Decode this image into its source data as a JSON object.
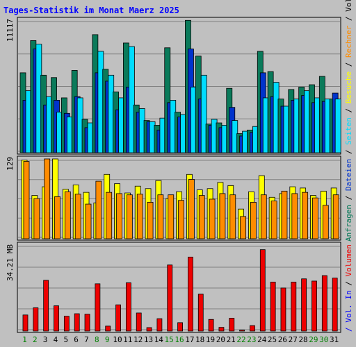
{
  "title": "Tages-Statistik im Monat Maerz 2025",
  "colors": {
    "background": "#c0c0c0",
    "panel_bg": "#c0c0c0",
    "grid": "#808080",
    "anfragen": "#0a7a5a",
    "dateien": "#0033cc",
    "seiten": "#00ddff",
    "besuche": "#ffff00",
    "rechner": "#ff8c00",
    "volumen": "#ee0000",
    "weekday_label": "#000000",
    "weekend_label": "#008000",
    "title": "#0000ff"
  },
  "right_legend": {
    "top": [
      {
        "text": "Anfragen",
        "color": "#0a7a5a"
      },
      {
        "text": " / ",
        "color": "#000000"
      },
      {
        "text": "Dateien",
        "color": "#0033cc"
      },
      {
        "text": " / ",
        "color": "#000000"
      },
      {
        "text": "Seiten",
        "color": "#00ddff"
      },
      {
        "text": " / ",
        "color": "#000000"
      },
      {
        "text": "Besuche",
        "color": "#ffff00"
      },
      {
        "text": " / ",
        "color": "#000000"
      },
      {
        "text": "Rechner",
        "color": "#ff8c00"
      },
      {
        "text": " / Vol. Out",
        "color": "#000000"
      }
    ],
    "bottom": [
      {
        "text": " / Vol. In",
        "color": "#0000ff"
      },
      {
        "text": " / ",
        "color": "#000000"
      },
      {
        "text": "Volumen",
        "color": "#ee0000"
      }
    ]
  },
  "chart_data": [
    {
      "type": "bar",
      "panel": "requests",
      "ymax_label": "11117",
      "ylim": [
        0,
        11117
      ],
      "x": [
        1,
        2,
        3,
        4,
        5,
        6,
        7,
        8,
        9,
        10,
        11,
        12,
        13,
        14,
        15,
        16,
        17,
        18,
        19,
        20,
        21,
        22,
        23,
        24,
        25,
        26,
        27,
        28,
        29,
        30,
        31
      ],
      "series": [
        {
          "name": "Anfragen",
          "values": [
            6700,
            9400,
            6500,
            6300,
            4600,
            6900,
            2800,
            9900,
            7000,
            5100,
            9200,
            4000,
            2700,
            2300,
            8800,
            3400,
            11100,
            8100,
            2400,
            2500,
            5400,
            1600,
            1900,
            8500,
            6800,
            4500,
            5300,
            5500,
            5700,
            6400,
            4500
          ]
        },
        {
          "name": "Dateien",
          "values": [
            4400,
            8700,
            4000,
            4400,
            3300,
            4700,
            2100,
            6700,
            6000,
            3600,
            5500,
            3400,
            2600,
            1900,
            4200,
            3000,
            8700,
            4500,
            2300,
            2100,
            3800,
            1400,
            1700,
            6700,
            4700,
            3900,
            4400,
            4800,
            4200,
            4300,
            5000
          ]
        },
        {
          "name": "Seiten",
          "values": [
            5200,
            9100,
            4700,
            3400,
            3000,
            4600,
            2500,
            8500,
            6500,
            4600,
            8900,
            3700,
            2600,
            2900,
            4400,
            3200,
            5500,
            6500,
            2800,
            2300,
            2700,
            1800,
            2200,
            4600,
            5900,
            3900,
            4500,
            5200,
            4600,
            4500,
            4500
          ]
        }
      ]
    },
    {
      "type": "bar",
      "panel": "visits",
      "ymax_label": "129",
      "ylim": [
        0,
        129
      ],
      "x": [
        1,
        2,
        3,
        4,
        5,
        6,
        7,
        8,
        9,
        10,
        11,
        12,
        13,
        14,
        15,
        16,
        17,
        18,
        19,
        20,
        21,
        22,
        23,
        24,
        25,
        26,
        27,
        28,
        29,
        30,
        31
      ],
      "series": [
        {
          "name": "Besuche",
          "values": [
            127,
            70,
            84,
            129,
            80,
            87,
            75,
            58,
            104,
            89,
            74,
            85,
            81,
            94,
            65,
            76,
            104,
            79,
            81,
            91,
            86,
            48,
            76,
            102,
            67,
            73,
            84,
            82,
            70,
            77,
            82
          ]
        },
        {
          "name": "Rechner",
          "values": [
            125,
            65,
            129,
            68,
            76,
            72,
            56,
            93,
            75,
            73,
            71,
            72,
            59,
            71,
            71,
            62,
            96,
            70,
            64,
            73,
            71,
            36,
            59,
            71,
            61,
            77,
            73,
            75,
            66,
            54,
            71
          ]
        }
      ]
    },
    {
      "type": "bar",
      "panel": "volume",
      "ymax_label": "34.21 MB",
      "ylim": [
        0,
        34.21
      ],
      "x": [
        1,
        2,
        3,
        4,
        5,
        6,
        7,
        8,
        9,
        10,
        11,
        12,
        13,
        14,
        15,
        16,
        17,
        18,
        19,
        20,
        21,
        22,
        23,
        24,
        25,
        26,
        27,
        28,
        29,
        30,
        31
      ],
      "series": [
        {
          "name": "Volumen",
          "values": [
            6.5,
            9.4,
            20.5,
            10.2,
            6.0,
            7.0,
            6.8,
            19.1,
            2.0,
            10.6,
            19.5,
            7.3,
            1.4,
            5.0,
            26.7,
            3.4,
            29.9,
            14.9,
            4.7,
            1.5,
            5.2,
            0.4,
            2.2,
            32.9,
            19.8,
            17.4,
            19.8,
            21.1,
            20.2,
            22.4,
            21.4
          ]
        }
      ]
    }
  ],
  "x_labels": [
    "1",
    "2",
    "3",
    "4",
    "5",
    "6",
    "7",
    "8",
    "9",
    "10",
    "11",
    "12",
    "13",
    "14",
    "15",
    "16",
    "17",
    "18",
    "19",
    "20",
    "21",
    "22",
    "23",
    "24",
    "25",
    "26",
    "27",
    "28",
    "29",
    "30",
    "31"
  ],
  "weekend_days": [
    1,
    2,
    8,
    9,
    15,
    16,
    22,
    23,
    29,
    30
  ]
}
